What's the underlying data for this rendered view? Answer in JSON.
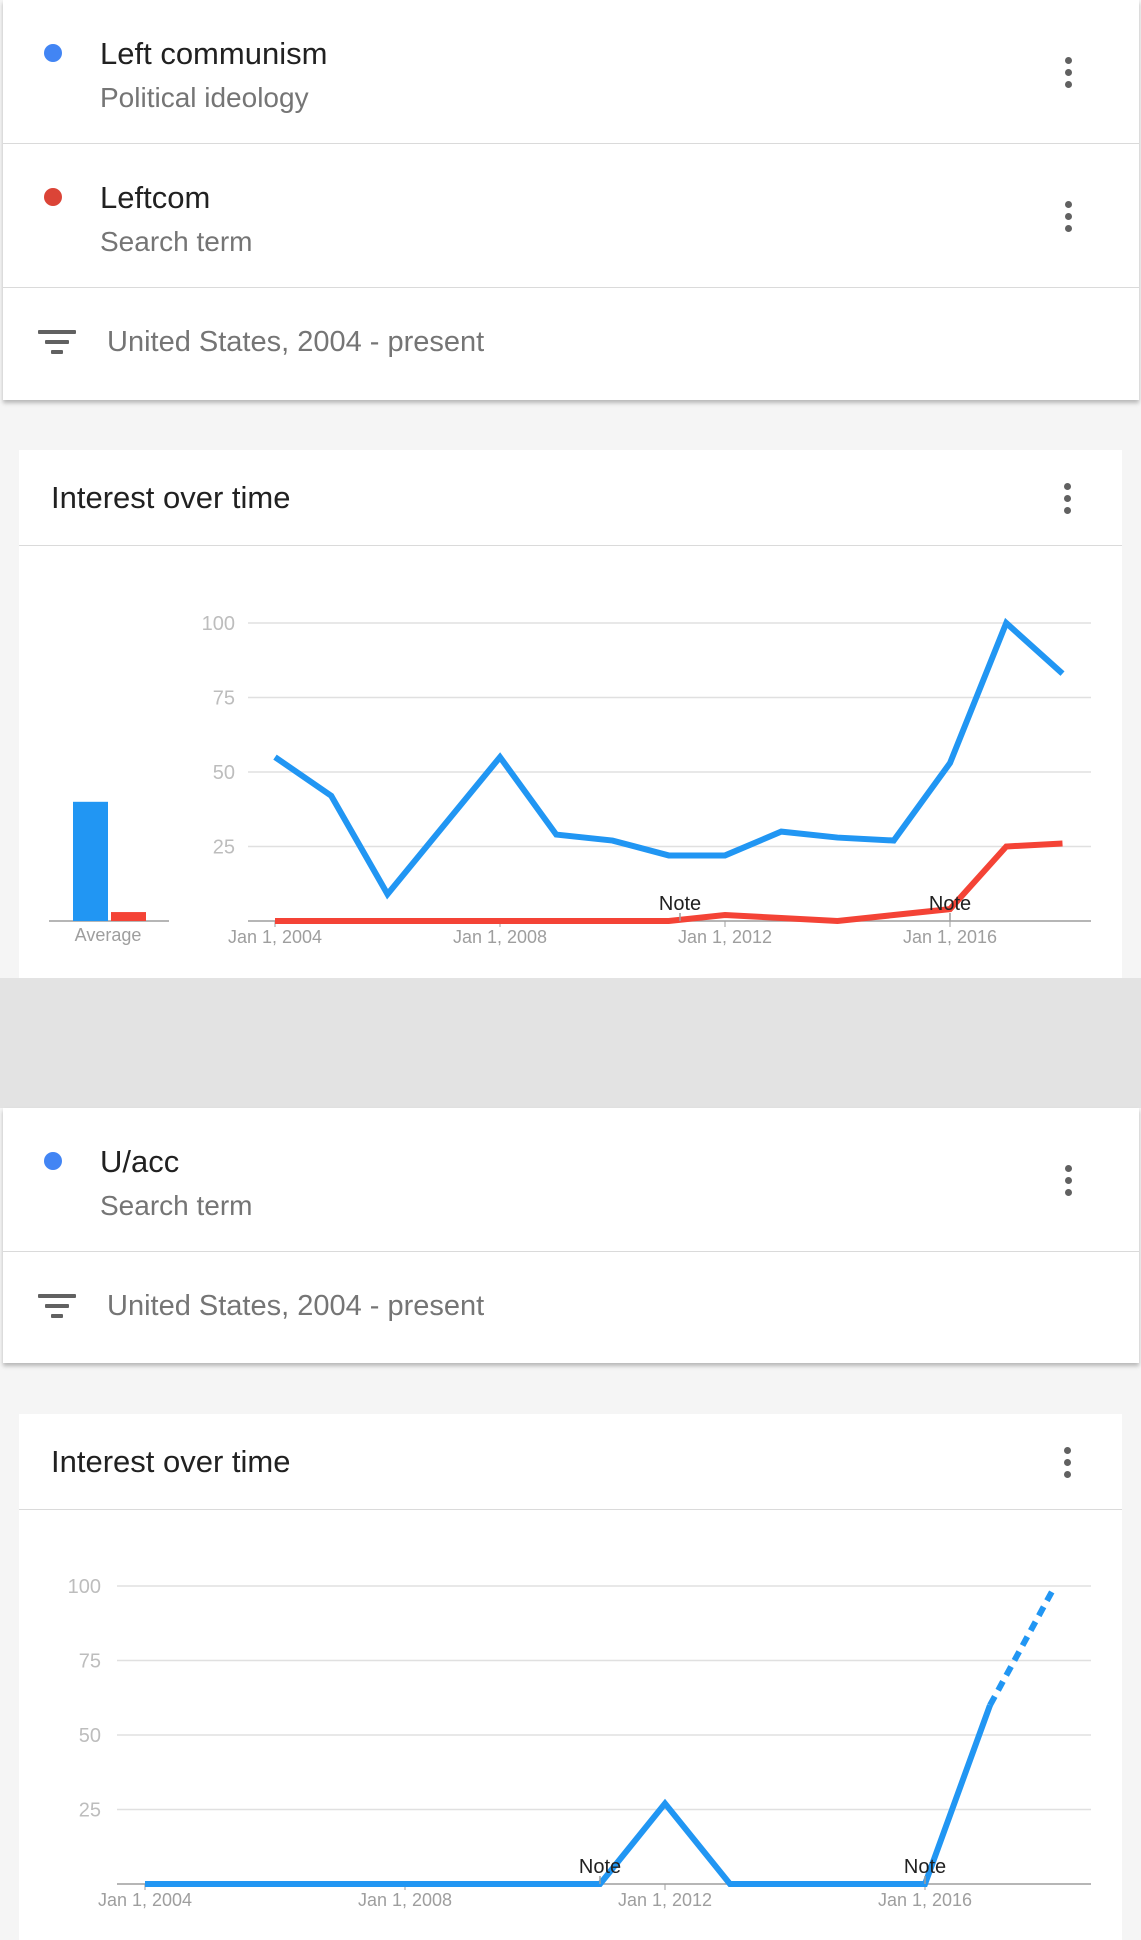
{
  "comparison1": {
    "terms": [
      {
        "name": "Left communism",
        "type": "Political ideology",
        "color": "#4285f4"
      },
      {
        "name": "Leftcom",
        "type": "Search term",
        "color": "#db4437"
      }
    ],
    "filter": "United States, 2004 - present",
    "card": {
      "title": "Interest over time",
      "average_label": "Average",
      "notes": [
        "Note",
        "Note"
      ]
    }
  },
  "comparison2": {
    "terms": [
      {
        "name": "U/acc",
        "type": "Search term",
        "color": "#4285f4"
      }
    ],
    "filter": "United States, 2004 - present",
    "card": {
      "title": "Interest over time",
      "notes": [
        "Note",
        "Note"
      ]
    }
  },
  "chart_data": [
    {
      "type": "line",
      "title": "Interest over time",
      "xlabel": "",
      "ylabel": "",
      "ylim": [
        0,
        100
      ],
      "yticks": [
        25,
        50,
        75,
        100
      ],
      "xticks": [
        "Jan 1, 2004",
        "Jan 1, 2008",
        "Jan 1, 2012",
        "Jan 1, 2016"
      ],
      "xlim": [
        2004,
        2019.5
      ],
      "grid": true,
      "series": [
        {
          "name": "Left communism",
          "color": "#2196f3",
          "x": [
            2004,
            2005,
            2006,
            2007,
            2008,
            2009,
            2010,
            2011,
            2012,
            2013,
            2014,
            2015,
            2016,
            2017,
            2018,
            2019
          ],
          "values": [
            55,
            42,
            9,
            32,
            55,
            29,
            27,
            22,
            22,
            30,
            28,
            27,
            53,
            100,
            83,
            null
          ]
        },
        {
          "name": "Leftcom",
          "color": "#f44336",
          "x": [
            2004,
            2005,
            2006,
            2007,
            2008,
            2009,
            2010,
            2011,
            2012,
            2013,
            2014,
            2015,
            2016,
            2017,
            2018
          ],
          "values": [
            0,
            0,
            0,
            0,
            0,
            0,
            0,
            0,
            2,
            1,
            0,
            2,
            4,
            25,
            26
          ]
        }
      ],
      "averages": [
        {
          "series": "Left communism",
          "value": 40,
          "color": "#2196f3"
        },
        {
          "series": "Leftcom",
          "value": 3,
          "color": "#f44336"
        }
      ],
      "notes_at": [
        2011.2,
        2016
      ]
    },
    {
      "type": "line",
      "title": "Interest over time",
      "xlabel": "",
      "ylabel": "",
      "ylim": [
        0,
        100
      ],
      "yticks": [
        25,
        50,
        75,
        100
      ],
      "xticks": [
        "Jan 1, 2004",
        "Jan 1, 2008",
        "Jan 1, 2012",
        "Jan 1, 2016"
      ],
      "grid": true,
      "series": [
        {
          "name": "U/acc",
          "color": "#2196f3",
          "x": [
            2004,
            2005,
            2006,
            2007,
            2008,
            2009,
            2010,
            2011,
            2012,
            2013,
            2014,
            2015,
            2016,
            2017,
            2018
          ],
          "values": [
            0,
            0,
            0,
            0,
            0,
            0,
            0,
            0,
            27,
            0,
            0,
            0,
            0,
            60,
            100
          ],
          "partial_from": 2017
        }
      ],
      "notes_at": [
        2011,
        2016
      ]
    }
  ]
}
